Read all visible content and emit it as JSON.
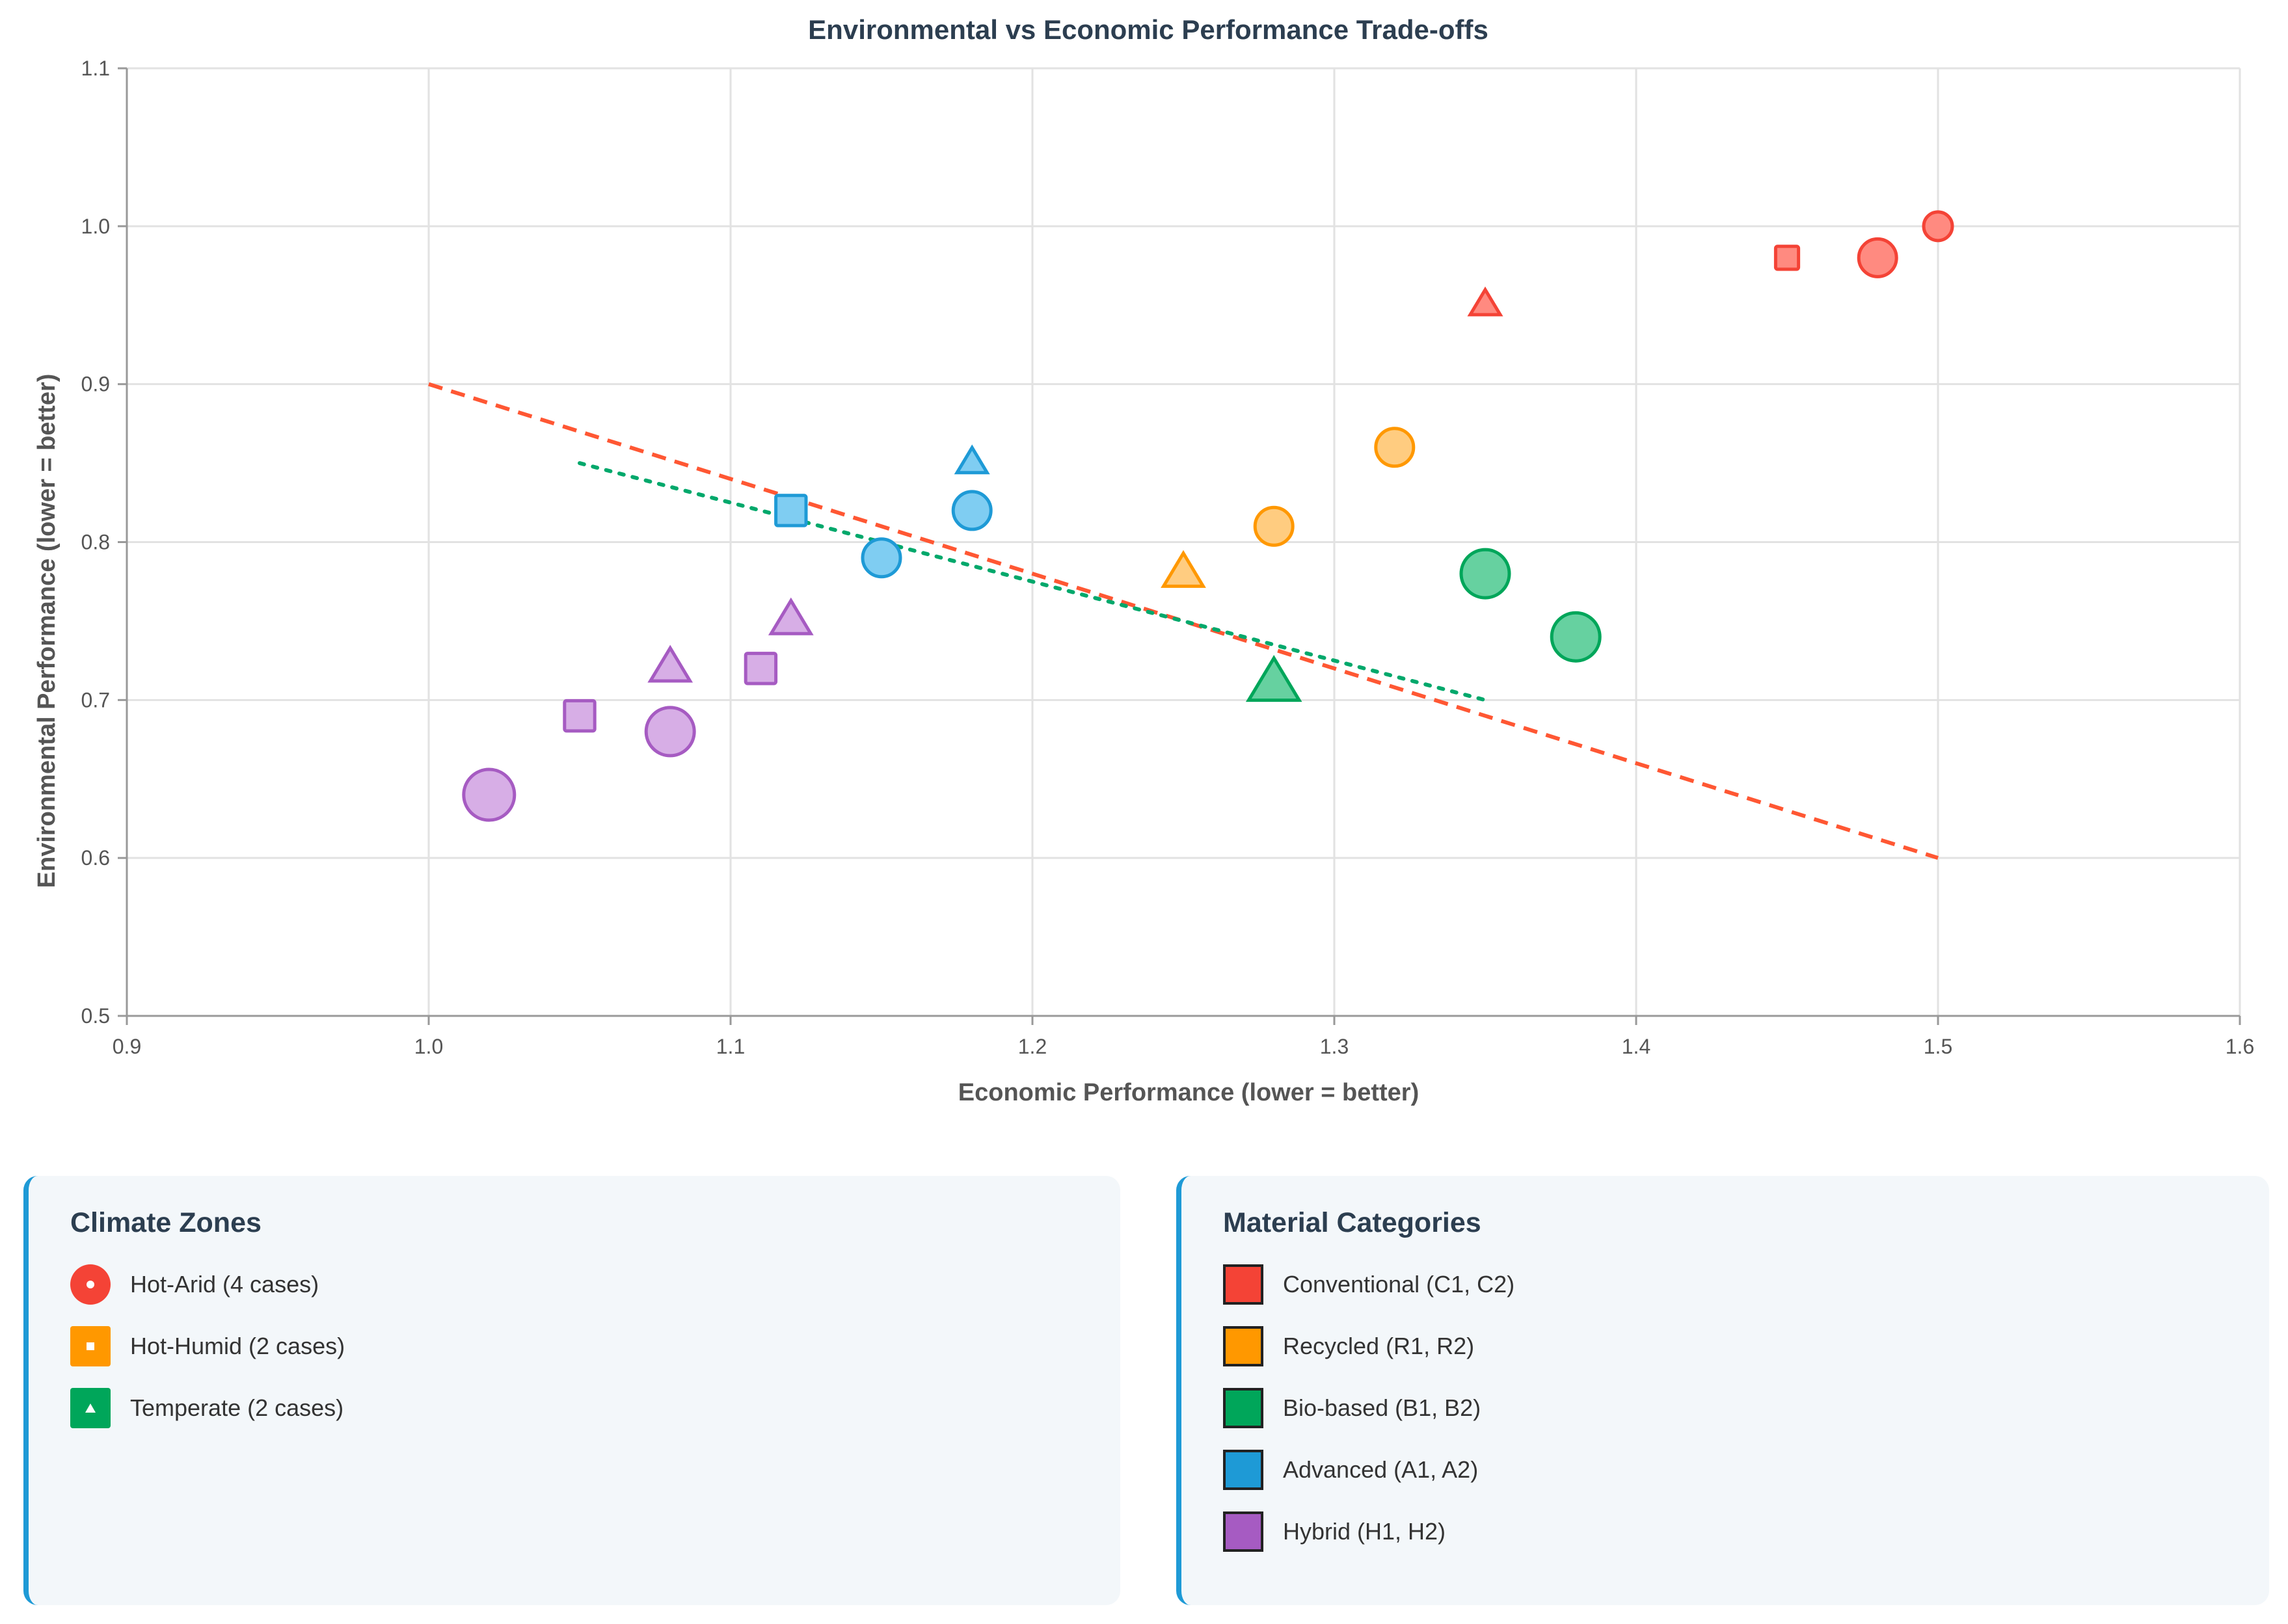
{
  "chart_data": {
    "type": "scatter",
    "title": "Environmental vs Economic Performance Trade-offs",
    "xlabel": "Economic Performance (lower = better)",
    "ylabel": "Environmental Performance (lower = better)",
    "xlim": [
      0.9,
      1.6
    ],
    "ylim": [
      0.5,
      1.1
    ],
    "xticks": [
      "0.9",
      "1.0",
      "1.1",
      "1.2",
      "1.3",
      "1.4",
      "1.5",
      "1.6"
    ],
    "yticks": [
      "0.5",
      "0.6",
      "0.7",
      "0.8",
      "0.9",
      "1.0",
      "1.1"
    ],
    "grid": true,
    "points": [
      {
        "x": 1.5,
        "y": 1.0,
        "category": "Conventional",
        "shape": "circle",
        "size": "small"
      },
      {
        "x": 1.48,
        "y": 0.98,
        "category": "Conventional",
        "shape": "circle",
        "size": "medium"
      },
      {
        "x": 1.45,
        "y": 0.98,
        "category": "Conventional",
        "shape": "square",
        "size": "small"
      },
      {
        "x": 1.35,
        "y": 0.95,
        "category": "Conventional",
        "shape": "triangle",
        "size": "small"
      },
      {
        "x": 1.32,
        "y": 0.86,
        "category": "Recycled",
        "shape": "circle",
        "size": "medium"
      },
      {
        "x": 1.28,
        "y": 0.81,
        "category": "Recycled",
        "shape": "circle",
        "size": "medium"
      },
      {
        "x": 1.25,
        "y": 0.78,
        "category": "Recycled",
        "shape": "triangle",
        "size": "medium"
      },
      {
        "x": 1.35,
        "y": 0.78,
        "category": "Bio-based",
        "shape": "circle",
        "size": "large"
      },
      {
        "x": 1.38,
        "y": 0.74,
        "category": "Bio-based",
        "shape": "circle",
        "size": "large"
      },
      {
        "x": 1.28,
        "y": 0.71,
        "category": "Bio-based",
        "shape": "triangle",
        "size": "large"
      },
      {
        "x": 1.18,
        "y": 0.85,
        "category": "Advanced",
        "shape": "triangle",
        "size": "small"
      },
      {
        "x": 1.18,
        "y": 0.82,
        "category": "Advanced",
        "shape": "circle",
        "size": "medium"
      },
      {
        "x": 1.12,
        "y": 0.82,
        "category": "Advanced",
        "shape": "square",
        "size": "medium"
      },
      {
        "x": 1.15,
        "y": 0.79,
        "category": "Advanced",
        "shape": "circle",
        "size": "medium"
      },
      {
        "x": 1.12,
        "y": 0.75,
        "category": "Hybrid",
        "shape": "triangle",
        "size": "medium"
      },
      {
        "x": 1.08,
        "y": 0.72,
        "category": "Hybrid",
        "shape": "triangle",
        "size": "medium"
      },
      {
        "x": 1.11,
        "y": 0.72,
        "category": "Hybrid",
        "shape": "square",
        "size": "medium"
      },
      {
        "x": 1.05,
        "y": 0.69,
        "category": "Hybrid",
        "shape": "square",
        "size": "medium"
      },
      {
        "x": 1.08,
        "y": 0.68,
        "category": "Hybrid",
        "shape": "circle",
        "size": "large"
      },
      {
        "x": 1.02,
        "y": 0.64,
        "category": "Hybrid",
        "shape": "circle",
        "size": "xlarge"
      }
    ],
    "trendlines": [
      {
        "name": "dashed-trend",
        "style": "dashed",
        "color": "#ff5733",
        "x": [
          1.0,
          1.5
        ],
        "y": [
          0.9,
          0.6
        ]
      },
      {
        "name": "dotted-trend",
        "style": "dotted",
        "color": "#00a86b",
        "x": [
          1.05,
          1.35
        ],
        "y": [
          0.85,
          0.7
        ]
      }
    ],
    "category_colors": {
      "Conventional": {
        "fill": "#ff8a80",
        "stroke": "#f44336"
      },
      "Recycled": {
        "fill": "#ffcc80",
        "stroke": "#ff9800"
      },
      "Bio-based": {
        "fill": "#66d1a0",
        "stroke": "#00a65a"
      },
      "Advanced": {
        "fill": "#7fcdf2",
        "stroke": "#1e9ad6"
      },
      "Hybrid": {
        "fill": "#d7aee6",
        "stroke": "#a65bc2"
      }
    },
    "shape_sizes": {
      "small": 22,
      "medium": 29,
      "large": 37,
      "xlarge": 39
    }
  },
  "legend_climate": {
    "title": "Climate Zones",
    "items": [
      {
        "label": "Hot-Arid (4 cases)",
        "color": "#f44336",
        "icon": "circle-dot-icon"
      },
      {
        "label": "Hot-Humid (2 cases)",
        "color": "#ff9800",
        "icon": "square-dot-icon"
      },
      {
        "label": "Temperate (2 cases)",
        "color": "#00a65a",
        "icon": "triangle-dot-icon"
      }
    ]
  },
  "legend_material": {
    "title": "Material Categories",
    "items": [
      {
        "label": "Conventional (C1, C2)",
        "color": "#f44336"
      },
      {
        "label": "Recycled (R1, R2)",
        "color": "#ff9800"
      },
      {
        "label": "Bio-based (B1, B2)",
        "color": "#00a65a"
      },
      {
        "label": "Advanced (A1, A2)",
        "color": "#1e9ad6"
      },
      {
        "label": "Hybrid (H1, H2)",
        "color": "#a65bc2"
      }
    ]
  }
}
